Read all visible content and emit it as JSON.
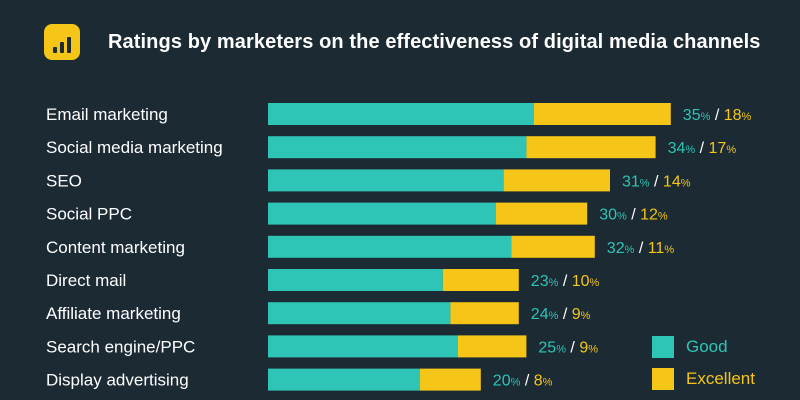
{
  "colors": {
    "background": "#1b2a33",
    "good": "#2ec4b6",
    "excellent": "#f5c518",
    "text": "#ffffff"
  },
  "header": {
    "icon": "bar-chart-icon",
    "title": "Ratings by marketers on the effectiveness of digital media channels"
  },
  "legend": {
    "good": "Good",
    "excellent": "Excellent"
  },
  "chart_data": {
    "type": "bar",
    "stacked": true,
    "orientation": "horizontal",
    "title": "Ratings by marketers on the effectiveness of digital media channels",
    "categories": [
      "Email marketing",
      "Social media marketing",
      "SEO",
      "Social PPC",
      "Content marketing",
      "Direct mail",
      "Affiliate marketing",
      "Search engine/PPC",
      "Display advertising"
    ],
    "series": [
      {
        "name": "Good",
        "values": [
          35,
          34,
          31,
          30,
          32,
          23,
          24,
          25,
          20
        ]
      },
      {
        "name": "Excellent",
        "values": [
          18,
          17,
          14,
          12,
          11,
          10,
          9,
          9,
          8
        ]
      }
    ],
    "unit": "%",
    "legend_position": "bottom-right",
    "grid": false
  }
}
